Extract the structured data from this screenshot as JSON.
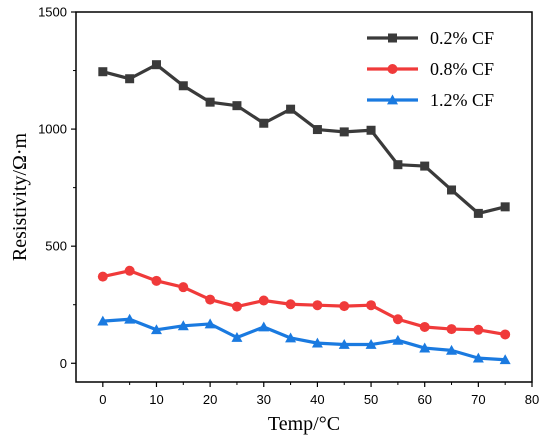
{
  "chart_data": {
    "type": "line",
    "title": "",
    "xlabel": "Temp/°C",
    "ylabel": "Resistivity/Ω·m",
    "xlim": [
      -5,
      80
    ],
    "ylim": [
      -80,
      1500
    ],
    "x_ticks": [
      0,
      10,
      20,
      30,
      40,
      50,
      60,
      70,
      80
    ],
    "y_ticks": [
      0,
      500,
      1000,
      1500
    ],
    "legend_position": "top-right",
    "grid": false,
    "x": [
      0,
      5,
      10,
      15,
      20,
      25,
      30,
      35,
      40,
      45,
      50,
      55,
      60,
      65,
      70,
      75
    ],
    "series": [
      {
        "name": "0.2% CF",
        "color": "#3a3a3a",
        "marker": "square",
        "values": [
          1245,
          1215,
          1275,
          1185,
          1115,
          1100,
          1025,
          1085,
          998,
          988,
          995,
          848,
          842,
          740,
          640,
          668
        ]
      },
      {
        "name": "0.8% CF",
        "color": "#f03a3a",
        "marker": "circle",
        "values": [
          370,
          395,
          352,
          325,
          272,
          242,
          268,
          252,
          248,
          244,
          248,
          188,
          155,
          146,
          143,
          123
        ]
      },
      {
        "name": "1.2% CF",
        "color": "#1a7ae0",
        "marker": "triangle",
        "values": [
          180,
          188,
          143,
          160,
          168,
          110,
          155,
          108,
          86,
          80,
          80,
          98,
          65,
          55,
          22,
          15
        ]
      }
    ]
  }
}
